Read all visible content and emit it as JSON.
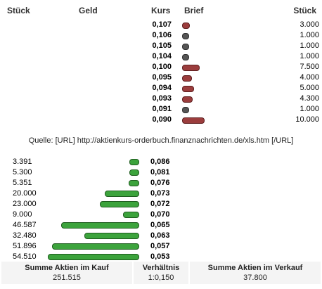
{
  "header": {
    "stueck_left": "Stück",
    "geld": "Geld",
    "kurs": "Kurs",
    "brief": "Brief",
    "stueck_right": "Stück"
  },
  "asks": [
    {
      "price": "0,107",
      "qty": "3.000"
    },
    {
      "price": "0,106",
      "qty": "1.000"
    },
    {
      "price": "0,105",
      "qty": "1.000"
    },
    {
      "price": "0,104",
      "qty": "1.000"
    },
    {
      "price": "0,100",
      "qty": "7.500"
    },
    {
      "price": "0,095",
      "qty": "4.000"
    },
    {
      "price": "0,094",
      "qty": "5.000"
    },
    {
      "price": "0,093",
      "qty": "4.300"
    },
    {
      "price": "0,091",
      "qty": "1.000"
    },
    {
      "price": "0,090",
      "qty": "10.000"
    }
  ],
  "source_text": "Quelle: [URL] http://aktienkurs-orderbuch.finanznachrichten.de/xls.htm [/URL]",
  "bids": [
    {
      "qty": "3.391",
      "price": "0,086"
    },
    {
      "qty": "5.300",
      "price": "0,081"
    },
    {
      "qty": "5.351",
      "price": "0,076"
    },
    {
      "qty": "20.000",
      "price": "0,073"
    },
    {
      "qty": "23.000",
      "price": "0,072"
    },
    {
      "qty": "9.000",
      "price": "0,070"
    },
    {
      "qty": "46.587",
      "price": "0,065"
    },
    {
      "qty": "32.480",
      "price": "0,063"
    },
    {
      "qty": "51.896",
      "price": "0,057"
    },
    {
      "qty": "54.510",
      "price": "0,053"
    }
  ],
  "summary": {
    "buy_label": "Summe Aktien im Kauf",
    "buy_value": "251.515",
    "ratio_label": "Verhältnis",
    "ratio_value": "1:0,150",
    "sell_label": "Summe Aktien im Verkauf",
    "sell_value": "37.800"
  },
  "colors": {
    "ask_bar": "#9b3d3d",
    "ask_bar_small": "#555555",
    "bid_bar": "#3ca33c"
  }
}
